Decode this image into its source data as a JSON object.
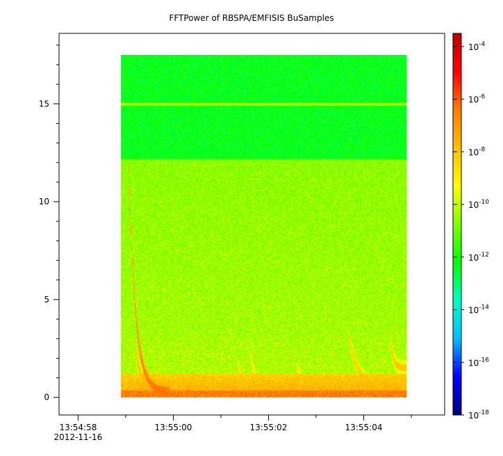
{
  "chart_data": {
    "type": "heatmap",
    "title": "FFTPower of RBSPA/EMFISIS  BuSamples",
    "xlabel": "",
    "ylabel": "",
    "x_axis": {
      "range": [
        "13:54:57.6",
        "13:55:05.7"
      ],
      "range_seconds": [
        57.6,
        65.7
      ],
      "ticks": [
        {
          "seconds": 58,
          "label": "13:54:58",
          "sublabel": "2012-11-16"
        },
        {
          "seconds": 60,
          "label": "13:55:00",
          "sublabel": ""
        },
        {
          "seconds": 62,
          "label": "13:55:02",
          "sublabel": ""
        },
        {
          "seconds": 64,
          "label": "13:55:04",
          "sublabel": ""
        }
      ],
      "minor_tick_seconds": [
        59,
        61,
        63,
        65
      ]
    },
    "y_axis": {
      "range": [
        -0.9,
        18.6
      ],
      "ticks": [
        {
          "value": 0,
          "label": "0"
        },
        {
          "value": 5,
          "label": "5"
        },
        {
          "value": 10,
          "label": "10"
        },
        {
          "value": 15,
          "label": "15"
        }
      ]
    },
    "data_extent": {
      "time_seconds": [
        58.9,
        64.9
      ],
      "frequency": [
        0,
        17.5
      ]
    },
    "colorbar": {
      "scale": "log",
      "range_exponent": [
        -18,
        -3.5
      ],
      "ticks": [
        {
          "base": "10",
          "exp": "-4",
          "value": -4
        },
        {
          "base": "10",
          "exp": "-6",
          "value": -6
        },
        {
          "base": "10",
          "exp": "-8",
          "value": -8
        },
        {
          "base": "10",
          "exp": "-10",
          "value": -10
        },
        {
          "base": "10",
          "exp": "-12",
          "value": -12
        },
        {
          "base": "10",
          "exp": "-14",
          "value": -14
        },
        {
          "base": "10",
          "exp": "-16",
          "value": -16
        },
        {
          "base": "10",
          "exp": "-18",
          "value": -18
        }
      ],
      "colormap": [
        "#00007f",
        "#0000ff",
        "#00bfff",
        "#00ffbf",
        "#00ff00",
        "#7fff00",
        "#ffff00",
        "#ffbf00",
        "#ff7f00",
        "#ff0000",
        "#bf0000"
      ]
    },
    "features": {
      "background_levels": {
        "above_12": -12.3,
        "below_12": -10.6,
        "near_zero": -7.6
      },
      "line_at_15": -10.2,
      "chorus_elements": [
        {
          "t0": 59.05,
          "f_start": 12.6,
          "t_end": 59.9,
          "f_end": 0.3,
          "level": -6.4
        },
        {
          "t0": 59.2,
          "f_start": 2.5,
          "t_end": 59.9,
          "f_end": 0.4,
          "level": -7.8
        },
        {
          "t0": 61.35,
          "f_start": 1.8,
          "t_end": 62.0,
          "f_end": 0.5,
          "level": -8.6
        },
        {
          "t0": 61.6,
          "f_start": 2.3,
          "t_end": 62.4,
          "f_end": 0.5,
          "level": -8.8
        },
        {
          "t0": 62.6,
          "f_start": 1.6,
          "t_end": 63.4,
          "f_end": 0.5,
          "level": -9.0
        },
        {
          "t0": 63.7,
          "f_start": 3.0,
          "t_end": 64.8,
          "f_end": 0.6,
          "level": -8.3
        },
        {
          "t0": 64.55,
          "f_start": 3.5,
          "t_end": 64.9,
          "f_end": 1.5,
          "level": -8.1
        }
      ]
    }
  }
}
